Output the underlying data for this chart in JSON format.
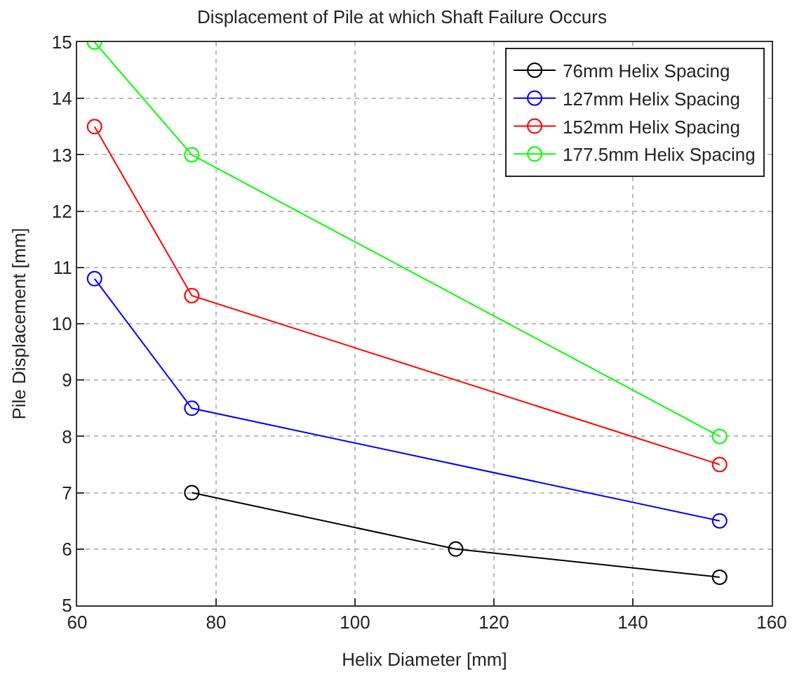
{
  "chart_data": {
    "type": "line",
    "title": "Displacement of Pile at which Shaft Failure Occurs",
    "xlabel": "Helix Diameter [mm]",
    "ylabel": "Pile Displacement [mm]",
    "series": [
      {
        "name": "76mm Helix Spacing",
        "color": "#000000",
        "x": [
          76.5,
          114.5,
          152.5
        ],
        "values": [
          7,
          6,
          5.5
        ]
      },
      {
        "name": "127mm Helix Spacing",
        "color": "#0000ff",
        "x": [
          62.5,
          76.5,
          152.5
        ],
        "values": [
          10.8,
          8.5,
          6.5
        ]
      },
      {
        "name": "152mm Helix Spacing",
        "color": "#ff0000",
        "x": [
          62.5,
          76.5,
          152.5
        ],
        "values": [
          13.5,
          10.5,
          7.5
        ]
      },
      {
        "name": "177.5mm Helix Spacing",
        "color": "#00ff00",
        "x": [
          62.5,
          76.5,
          152.5
        ],
        "values": [
          15,
          13,
          8
        ]
      }
    ],
    "xlim": [
      60,
      160
    ],
    "xticks": [
      60,
      80,
      100,
      120,
      140,
      160
    ],
    "ylim": [
      5,
      15
    ],
    "yticks": [
      5,
      6,
      7,
      8,
      9,
      10,
      11,
      12,
      13,
      14,
      15
    ],
    "grid": true,
    "legend": "top right",
    "marker": "circle",
    "line_style": "solid"
  }
}
